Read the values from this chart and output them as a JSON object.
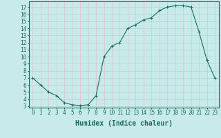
{
  "x": [
    0,
    1,
    2,
    3,
    4,
    5,
    6,
    7,
    8,
    9,
    10,
    11,
    12,
    13,
    14,
    15,
    16,
    17,
    18,
    19,
    20,
    21,
    22,
    23
  ],
  "y": [
    7,
    6,
    5,
    4.5,
    3.5,
    3.2,
    3.1,
    3.2,
    4.5,
    10,
    11.5,
    12,
    14,
    14.5,
    15.2,
    15.5,
    16.5,
    17,
    17.2,
    17.2,
    17,
    13.5,
    9.5,
    7
  ],
  "line_color": "#1a6b5a",
  "marker": "+",
  "bg_color": "#c8eaea",
  "hgrid_color": "#a8d8d8",
  "vgrid_color": "#e8c0c0",
  "xlabel": "Humidex (Indice chaleur)",
  "ylim": [
    2.8,
    17.8
  ],
  "xlim": [
    -0.5,
    23.5
  ],
  "yticks": [
    3,
    4,
    5,
    6,
    7,
    8,
    9,
    10,
    11,
    12,
    13,
    14,
    15,
    16,
    17
  ],
  "xticks": [
    0,
    1,
    2,
    3,
    4,
    5,
    6,
    7,
    8,
    9,
    10,
    11,
    12,
    13,
    14,
    15,
    16,
    17,
    18,
    19,
    20,
    21,
    22,
    23
  ],
  "label_color": "#1a6b5a",
  "tick_color": "#1a6b5a",
  "axis_color": "#1a6b5a",
  "font_size": 5.5,
  "xlabel_fontsize": 7
}
